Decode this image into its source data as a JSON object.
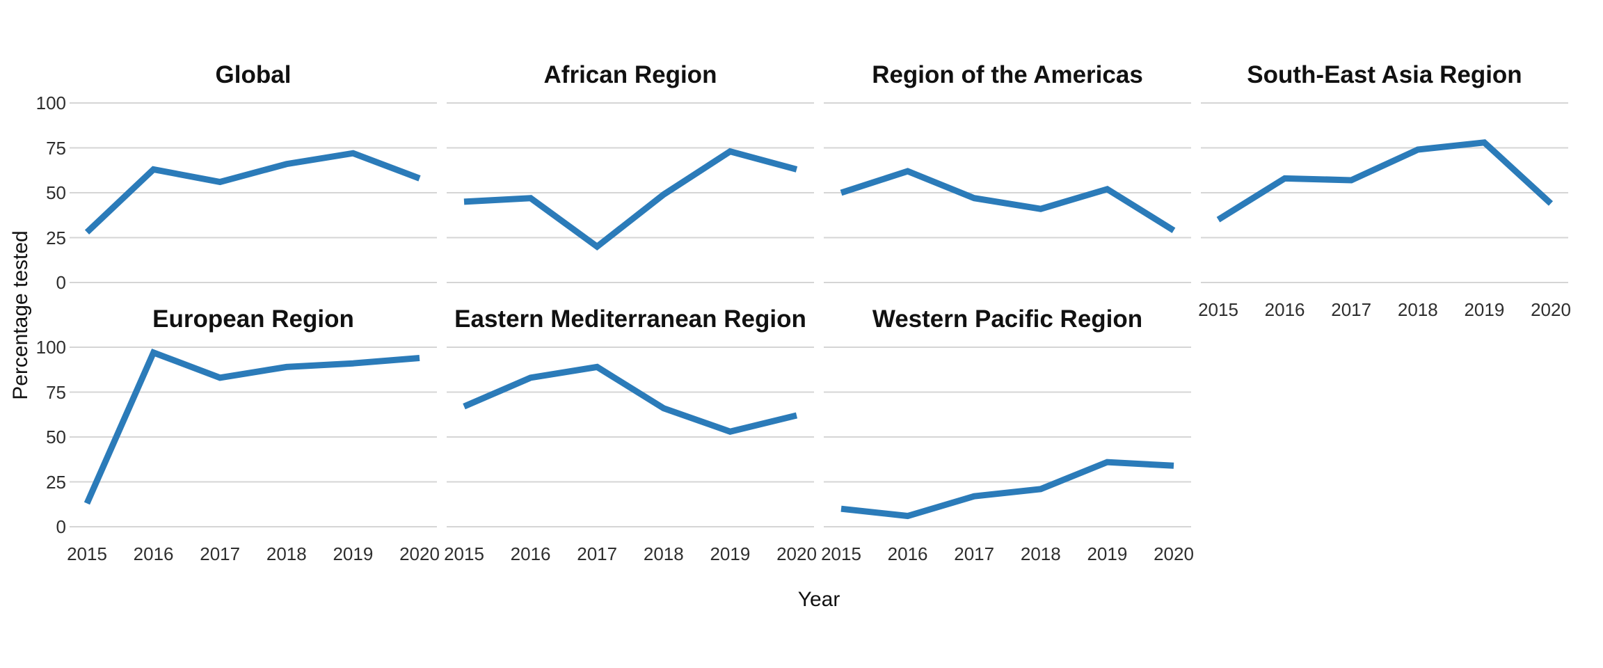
{
  "figure": {
    "ylabel": "Percentage tested",
    "xlabel": "Year"
  },
  "chart_data": {
    "type": "line",
    "x": [
      2015,
      2016,
      2017,
      2018,
      2019,
      2020
    ],
    "xlabel": "Year",
    "ylabel": "Percentage tested",
    "ylim": [
      0,
      100
    ],
    "yticks": [
      0,
      25,
      50,
      75,
      100
    ],
    "grid": "horizontal-gridlines-only",
    "legend": "none",
    "line_color": "#2b7bb9",
    "gridline_color": "#d5d5d5",
    "panels": [
      {
        "title": "Global",
        "row": 0,
        "col": 0,
        "values": [
          28,
          63,
          56,
          66,
          72,
          58
        ],
        "show_x_labels": false
      },
      {
        "title": "African Region",
        "row": 0,
        "col": 1,
        "values": [
          45,
          47,
          20,
          49,
          73,
          63
        ],
        "show_x_labels": false
      },
      {
        "title": "Region of the Americas",
        "row": 0,
        "col": 2,
        "values": [
          50,
          62,
          47,
          41,
          52,
          29
        ],
        "show_x_labels": false
      },
      {
        "title": "South-East Asia Region",
        "row": 0,
        "col": 3,
        "values": [
          35,
          58,
          57,
          74,
          78,
          44
        ],
        "show_x_labels": true
      },
      {
        "title": "European Region",
        "row": 1,
        "col": 0,
        "values": [
          13,
          97,
          83,
          89,
          91,
          94
        ],
        "show_x_labels": true
      },
      {
        "title": "Eastern Mediterranean Region",
        "row": 1,
        "col": 1,
        "values": [
          67,
          83,
          89,
          66,
          53,
          62
        ],
        "show_x_labels": true
      },
      {
        "title": "Western Pacific Region",
        "row": 1,
        "col": 2,
        "values": [
          10,
          6,
          17,
          21,
          36,
          34
        ],
        "show_x_labels": true
      }
    ]
  }
}
